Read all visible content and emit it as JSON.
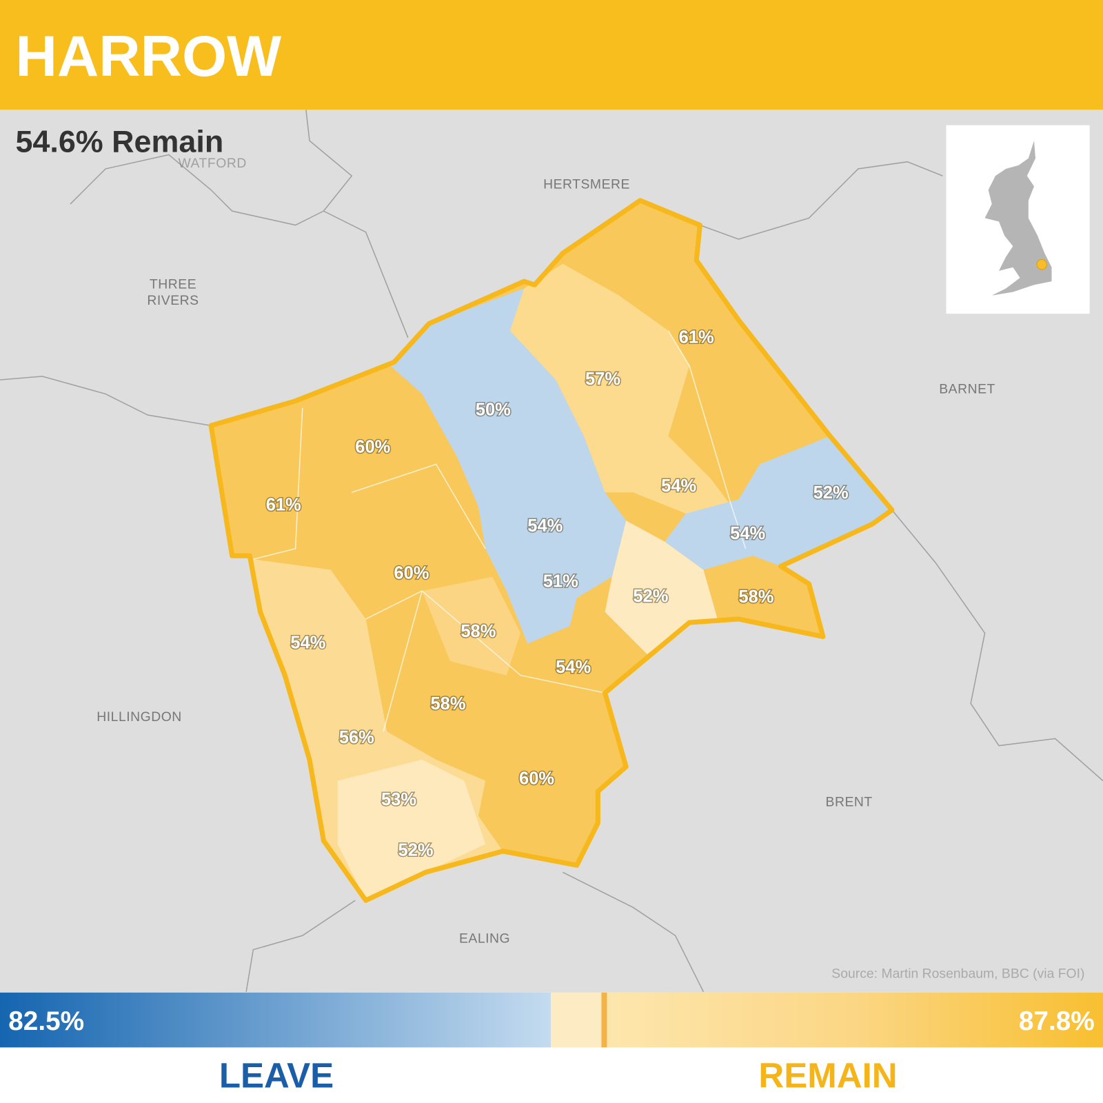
{
  "header": {
    "title": "HARROW"
  },
  "result": "54.6% Remain",
  "places": {
    "watford": "WATFORD",
    "hertsmere": "HERTSMERE",
    "three_rivers": [
      "THREE",
      "RIVERS"
    ],
    "barnet": "BARNET",
    "hillingdon": "HILLINGDON",
    "brent": "BRENT",
    "ealing": "EALING"
  },
  "wards": [
    "61%",
    "57%",
    "50%",
    "60%",
    "61%",
    "54%",
    "52%",
    "54%",
    "54%",
    "60%",
    "51%",
    "52%",
    "58%",
    "54%",
    "58%",
    "54%",
    "58%",
    "56%",
    "60%",
    "53%",
    "52%"
  ],
  "source": "Source: Martin Rosenbaum, BBC (via FOI)",
  "scale": {
    "min_label": "82.5%",
    "max_label": "87.8%",
    "leave": "LEAVE",
    "remain": "REMAIN"
  }
}
